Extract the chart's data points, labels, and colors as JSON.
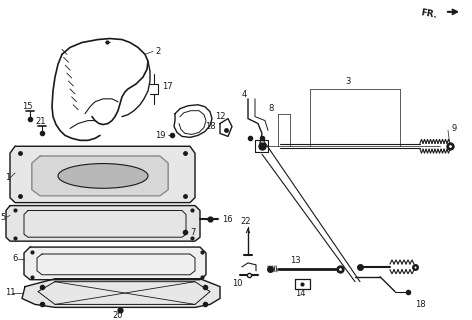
{
  "bg_color": "#ffffff",
  "line_color": "#1a1a1a",
  "figsize": [
    4.72,
    3.2
  ],
  "dpi": 100,
  "xlim": [
    0,
    472
  ],
  "ylim": [
    0,
    320
  ]
}
